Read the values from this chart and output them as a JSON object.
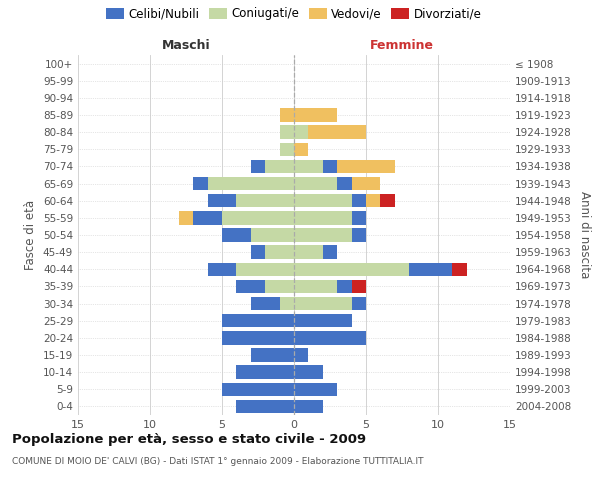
{
  "age_groups": [
    "0-4",
    "5-9",
    "10-14",
    "15-19",
    "20-24",
    "25-29",
    "30-34",
    "35-39",
    "40-44",
    "45-49",
    "50-54",
    "55-59",
    "60-64",
    "65-69",
    "70-74",
    "75-79",
    "80-84",
    "85-89",
    "90-94",
    "95-99",
    "100+"
  ],
  "birth_years": [
    "2004-2008",
    "1999-2003",
    "1994-1998",
    "1989-1993",
    "1984-1988",
    "1979-1983",
    "1974-1978",
    "1969-1973",
    "1964-1968",
    "1959-1963",
    "1954-1958",
    "1949-1953",
    "1944-1948",
    "1939-1943",
    "1934-1938",
    "1929-1933",
    "1924-1928",
    "1919-1923",
    "1914-1918",
    "1909-1913",
    "≤ 1908"
  ],
  "male": {
    "coniugati": [
      0,
      0,
      0,
      0,
      0,
      0,
      1,
      2,
      4,
      2,
      3,
      5,
      4,
      6,
      2,
      1,
      1,
      0,
      0,
      0,
      0
    ],
    "celibi": [
      4,
      5,
      4,
      3,
      5,
      5,
      2,
      2,
      2,
      1,
      2,
      2,
      2,
      1,
      1,
      0,
      0,
      0,
      0,
      0,
      0
    ],
    "vedovi": [
      0,
      0,
      0,
      0,
      0,
      0,
      0,
      0,
      0,
      0,
      0,
      1,
      0,
      0,
      0,
      0,
      0,
      1,
      0,
      0,
      0
    ],
    "divorziati": [
      0,
      0,
      0,
      0,
      0,
      0,
      0,
      0,
      0,
      0,
      0,
      0,
      0,
      0,
      0,
      0,
      0,
      0,
      0,
      0,
      0
    ]
  },
  "female": {
    "coniugate": [
      0,
      0,
      0,
      0,
      0,
      0,
      4,
      3,
      8,
      2,
      4,
      4,
      4,
      3,
      2,
      0,
      1,
      0,
      0,
      0,
      0
    ],
    "nubili": [
      2,
      3,
      2,
      1,
      5,
      4,
      1,
      1,
      3,
      1,
      1,
      1,
      1,
      1,
      1,
      0,
      0,
      0,
      0,
      0,
      0
    ],
    "vedove": [
      0,
      0,
      0,
      0,
      0,
      0,
      0,
      0,
      0,
      0,
      0,
      0,
      1,
      2,
      4,
      1,
      4,
      3,
      0,
      0,
      0
    ],
    "divorziate": [
      0,
      0,
      0,
      0,
      0,
      0,
      0,
      1,
      1,
      0,
      0,
      0,
      1,
      0,
      0,
      0,
      0,
      0,
      0,
      0,
      0
    ]
  },
  "color_celibi": "#4472c4",
  "color_coniugati": "#c5d9a5",
  "color_vedovi": "#f0c060",
  "color_divorziati": "#cc2222",
  "xlim": 15,
  "title": "Popolazione per età, sesso e stato civile - 2009",
  "subtitle": "COMUNE DI MOIO DE' CALVI (BG) - Dati ISTAT 1° gennaio 2009 - Elaborazione TUTTITALIA.IT",
  "ylabel_left": "Fasce di età",
  "ylabel_right": "Anni di nascita",
  "xlabel_left": "Maschi",
  "xlabel_right": "Femmine",
  "legend_labels": [
    "Celibi/Nubili",
    "Coniugati/e",
    "Vedovi/e",
    "Divorziati/e"
  ]
}
